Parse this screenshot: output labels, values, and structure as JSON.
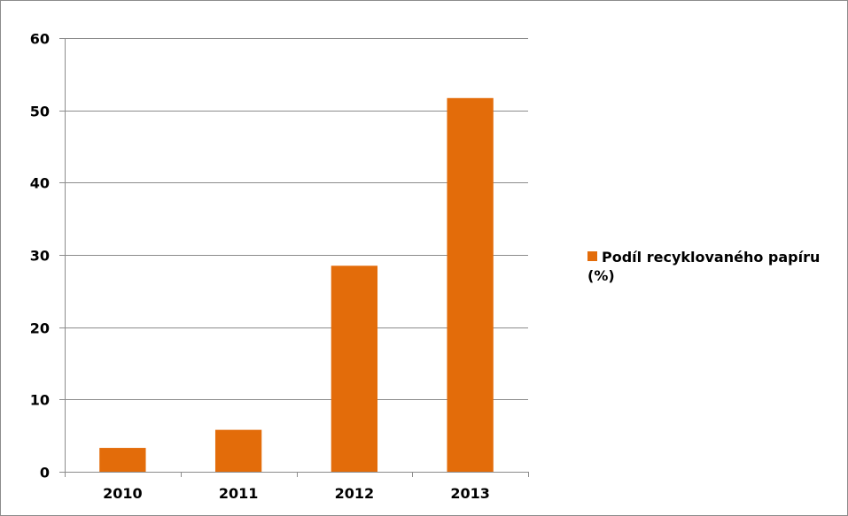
{
  "chart_data": {
    "type": "bar",
    "categories": [
      "2010",
      "2011",
      "2012",
      "2013"
    ],
    "series": [
      {
        "name": "Podíl recyklovaného papíru (%)",
        "values": [
          3.3,
          5.8,
          28.5,
          51.7
        ]
      }
    ],
    "ylim": [
      0,
      60
    ],
    "yticks": [
      0,
      10,
      20,
      30,
      40,
      50,
      60
    ],
    "grid": true,
    "legend": "right",
    "color": "#E36C0A"
  },
  "legend": {
    "label": "Podíl recyklovaného papíru (%)"
  }
}
